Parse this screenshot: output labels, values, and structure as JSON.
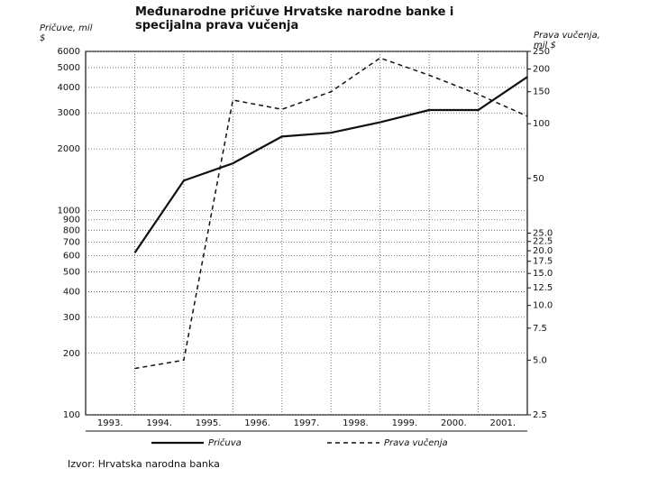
{
  "chart_data": {
    "type": "line",
    "title": "Međunarodne pričuve Hrvatske narodne banke i specijalna prava vučenja",
    "y_label": "Pričuve, mil $",
    "y2_label": "Prava vučenja, mil $",
    "source": "Izvor: Hrvatska narodna banka",
    "categories": [
      "1993.",
      "1994.",
      "1995.",
      "1996.",
      "1997.",
      "1998.",
      "1999.",
      "2000.",
      "2001."
    ],
    "log_scale": true,
    "grid": true,
    "legend_position": "bottom",
    "ylim": [
      100,
      6000
    ],
    "yticks": [
      100,
      200,
      300,
      400,
      500,
      600,
      700,
      800,
      900,
      1000,
      2000,
      3000,
      4000,
      5000,
      6000
    ],
    "y2lim": [
      2.5,
      250
    ],
    "y2ticks": [
      2.5,
      {
        "value": 5,
        "label": "5.0"
      },
      7.5,
      {
        "value": 10,
        "label": "10.0"
      },
      12.5,
      {
        "value": 15,
        "label": "15.0"
      },
      17.5,
      {
        "value": 20,
        "label": "20.0"
      },
      22.5,
      {
        "value": 25,
        "label": "25.0"
      },
      50,
      100,
      150,
      200,
      250
    ],
    "series": [
      {
        "name": "Pričuva",
        "color": "#111111",
        "line_style": "solid",
        "axis": "y",
        "values": [
          620,
          1400,
          1700,
          2300,
          2400,
          2700,
          3100,
          3100,
          4500
        ]
      },
      {
        "name": "Prava vučenja",
        "color": "#111111",
        "line_style": "dashed",
        "axis": "y2",
        "values": [
          4.5,
          5.0,
          135,
          120,
          150,
          230,
          185,
          145,
          110
        ]
      }
    ]
  }
}
